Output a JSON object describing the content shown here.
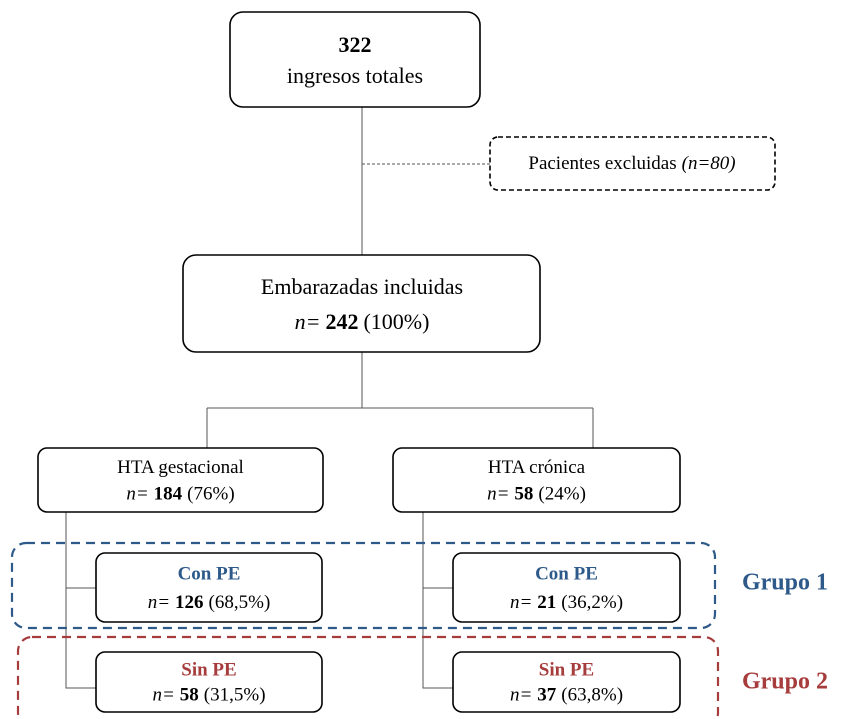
{
  "total": {
    "count": 322,
    "label": "ingresos totales"
  },
  "excluded": {
    "label": "Pacientes excluidas",
    "n": "(n=80)"
  },
  "included": {
    "label": "Embarazadas incluidas",
    "n_label": "n=",
    "count": 242,
    "percent": "(100%)"
  },
  "gestational": {
    "label": "HTA gestacional",
    "n_label": "n=",
    "count": 184,
    "percent": "(76%)",
    "with_pe": {
      "label": "Con PE",
      "n_label": "n=",
      "count": 126,
      "percent": "(68,5%)"
    },
    "without_pe": {
      "label": "Sin PE",
      "n_label": "n=",
      "count": 58,
      "percent": "(31,5%)"
    }
  },
  "chronic": {
    "label": "HTA crónica",
    "n_label": "n=",
    "count": 58,
    "percent": "(24%)",
    "with_pe": {
      "label": "Con PE",
      "n_label": "n=",
      "count": 21,
      "percent": "(36,2%)"
    },
    "without_pe": {
      "label": "Sin PE",
      "n_label": "n=",
      "count": 37,
      "percent": "(63,8%)"
    }
  },
  "groups": {
    "group_1": "Grupo 1",
    "group_2": "Grupo 2"
  }
}
